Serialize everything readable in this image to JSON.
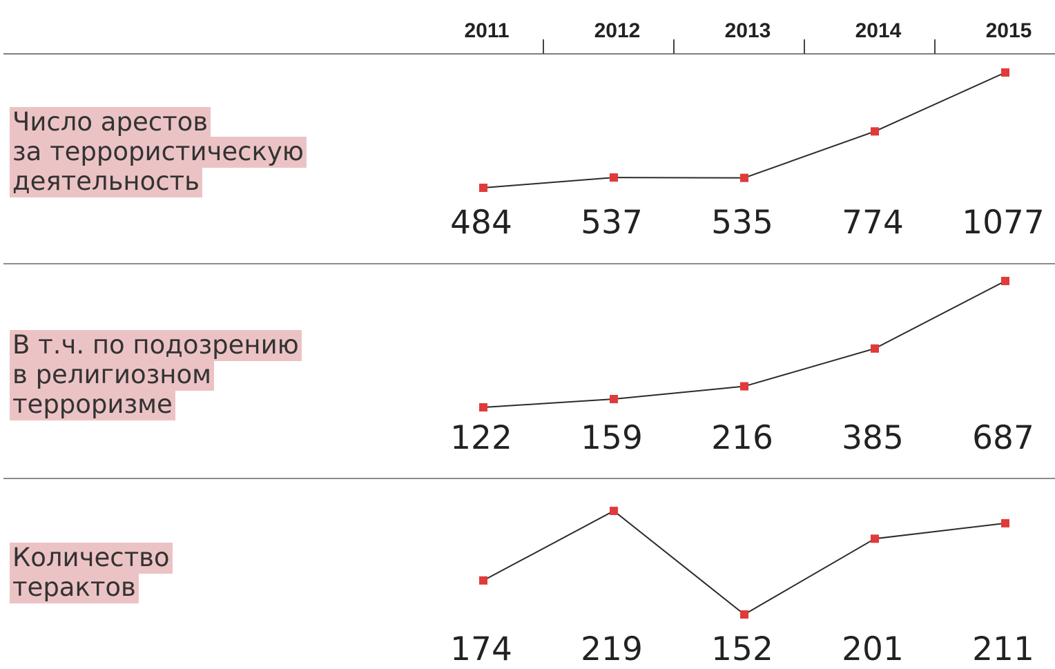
{
  "chart_data": {
    "type": "line",
    "categories": [
      "2011",
      "2012",
      "2013",
      "2014",
      "2015"
    ],
    "line_color": "#2b2b2b",
    "series": [
      {
        "name": "Число арестов\nза террористическую\nдеятельность",
        "color": "#e03a3a",
        "values": [
          484,
          537,
          535,
          774,
          1077
        ]
      },
      {
        "name": "В т.ч. по подозрению\nв религиозном\nтерроризме",
        "color": "#e03a3a",
        "values": [
          122,
          159,
          216,
          385,
          687
        ]
      },
      {
        "name": "Количество\nтерактов",
        "color": "#e03a3a",
        "values": [
          174,
          219,
          152,
          201,
          211
        ]
      }
    ]
  }
}
